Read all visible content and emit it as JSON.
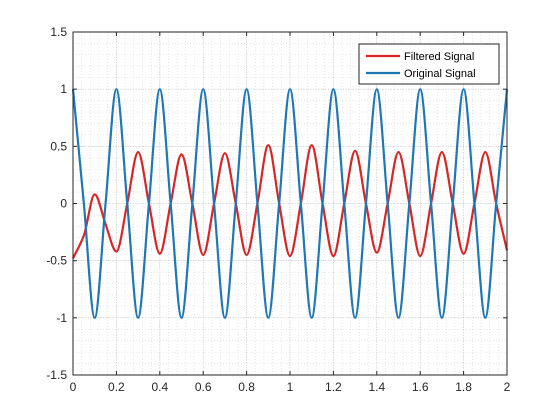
{
  "chart_data": {
    "type": "line",
    "title": "",
    "xlabel": "",
    "ylabel": "",
    "xlim": [
      0,
      2
    ],
    "ylim": [
      -1.5,
      1.5
    ],
    "x_ticks": [
      "0",
      "0.2",
      "0.4",
      "0.6",
      "0.8",
      "1",
      "1.2",
      "1.4",
      "1.6",
      "1.8",
      "2"
    ],
    "y_ticks": [
      "1.5",
      "1",
      "0.5",
      "0",
      "-0.5",
      "-1",
      "-1.5"
    ],
    "grid": true,
    "minor_grid": true,
    "legend_position": "top-right",
    "series": [
      {
        "name": "Filtered Signal",
        "color": "#d62728",
        "x": [
          0,
          0.05,
          0.1,
          0.15,
          0.2,
          0.25,
          0.3,
          0.35,
          0.4,
          0.45,
          0.5,
          0.55,
          0.6,
          0.65,
          0.7,
          0.75,
          0.8,
          0.85,
          0.9,
          0.95,
          1.0,
          1.05,
          1.1,
          1.15,
          1.2,
          1.25,
          1.3,
          1.35,
          1.4,
          1.45,
          1.5,
          1.55,
          1.6,
          1.65,
          1.7,
          1.75,
          1.8,
          1.85,
          1.9,
          1.95,
          2.0
        ],
        "y": [
          -0.48,
          -0.28,
          0.08,
          -0.18,
          -0.42,
          0.0,
          0.45,
          0.0,
          -0.44,
          0.0,
          0.43,
          0.0,
          -0.45,
          0.0,
          0.44,
          0.0,
          -0.45,
          0.0,
          0.51,
          0.0,
          -0.46,
          0.0,
          0.51,
          0.0,
          -0.46,
          0.0,
          0.46,
          0.0,
          -0.43,
          0.0,
          0.45,
          0.0,
          -0.46,
          0.0,
          0.45,
          0.0,
          -0.44,
          0.0,
          0.45,
          0.0,
          -0.41
        ]
      },
      {
        "name": "Original Signal",
        "color": "#1f77b4",
        "x": [
          0,
          0.05,
          0.1,
          0.15,
          0.2,
          0.25,
          0.3,
          0.35,
          0.4,
          0.45,
          0.5,
          0.55,
          0.6,
          0.65,
          0.7,
          0.75,
          0.8,
          0.85,
          0.9,
          0.95,
          1.0,
          1.05,
          1.1,
          1.15,
          1.2,
          1.25,
          1.3,
          1.35,
          1.4,
          1.45,
          1.5,
          1.55,
          1.6,
          1.65,
          1.7,
          1.75,
          1.8,
          1.85,
          1.9,
          1.95,
          2.0
        ],
        "y": [
          1,
          0,
          -1,
          0,
          1,
          0,
          -1,
          0,
          1,
          0,
          -1,
          0,
          1,
          0,
          -1,
          0,
          1,
          0,
          -1,
          0,
          1,
          0,
          -1,
          0,
          1,
          0,
          -1,
          0,
          1,
          0,
          -1,
          0,
          1,
          0,
          -1,
          0,
          1,
          0,
          -1,
          0,
          1
        ]
      }
    ]
  }
}
